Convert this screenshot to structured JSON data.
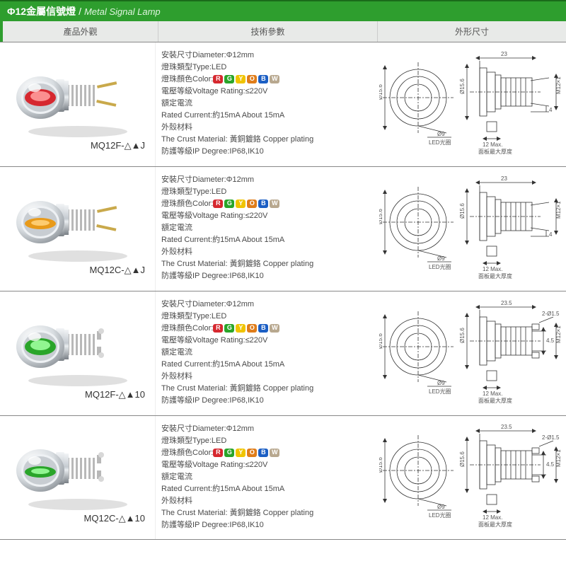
{
  "title": {
    "zh": "Φ12金屬信號燈",
    "en": "Metal Signal Lamp"
  },
  "headers": {
    "photo": "產品外觀",
    "spec": "技術參數",
    "dim": "外形尺寸"
  },
  "color_badges": [
    {
      "letter": "R",
      "bg": "#d6282f"
    },
    {
      "letter": "G",
      "bg": "#2aa52a"
    },
    {
      "letter": "Y",
      "bg": "#f0c400"
    },
    {
      "letter": "O",
      "bg": "#e07d1a"
    },
    {
      "letter": "B",
      "bg": "#1c5fc4"
    },
    {
      "letter": "W",
      "bg": "#b8a88f"
    }
  ],
  "spec_lines": {
    "diameter": "安裝尺寸Diameter:Φ12mm",
    "type": "燈珠類型Type:LED",
    "color_label": "燈珠顏色Color:",
    "voltage": "電壓等級Voltage Rating:≤220V",
    "current_label": "額定電流",
    "current": "Rated Current:約15mA   About 15mA",
    "shell_label": "外殼材料",
    "shell": "The Crust Material: 黃銅鍍鉻 Copper plating",
    "ip": "防護等級IP Degree:IP68,IK10"
  },
  "dim": {
    "front_dia": "Ø15.6",
    "led_note": "Ø9",
    "led_sub": "LED光圈",
    "side_len": "23",
    "side_len2": "23.5",
    "thread": "M12×1",
    "screw": "2-Ø1.5",
    "nut": "12 Max.",
    "nut_sub": "面板最大厚度",
    "tail": "4",
    "tail2": "4.5"
  },
  "products": [
    {
      "model": "MQ12F-△▲J",
      "lamp_color": "#d6282f",
      "lamp_light": "#ff9a9a",
      "dome": "round",
      "terminal": "pins",
      "side_len_key": "side_len",
      "tail_key": "tail",
      "show_screw": false
    },
    {
      "model": "MQ12C-△▲J",
      "lamp_color": "#e89a1a",
      "lamp_light": "#ffd27a",
      "dome": "flat",
      "terminal": "pins",
      "side_len_key": "side_len",
      "tail_key": "tail",
      "show_screw": false
    },
    {
      "model": "MQ12F-△▲10",
      "lamp_color": "#2aa52a",
      "lamp_light": "#9cff9c",
      "dome": "round",
      "terminal": "screws",
      "side_len_key": "side_len2",
      "tail_key": "tail2",
      "show_screw": true
    },
    {
      "model": "MQ12C-△▲10",
      "lamp_color": "#2aa52a",
      "lamp_light": "#9cff9c",
      "dome": "flat",
      "terminal": "screws",
      "side_len_key": "side_len2",
      "tail_key": "tail2",
      "show_screw": true
    }
  ]
}
